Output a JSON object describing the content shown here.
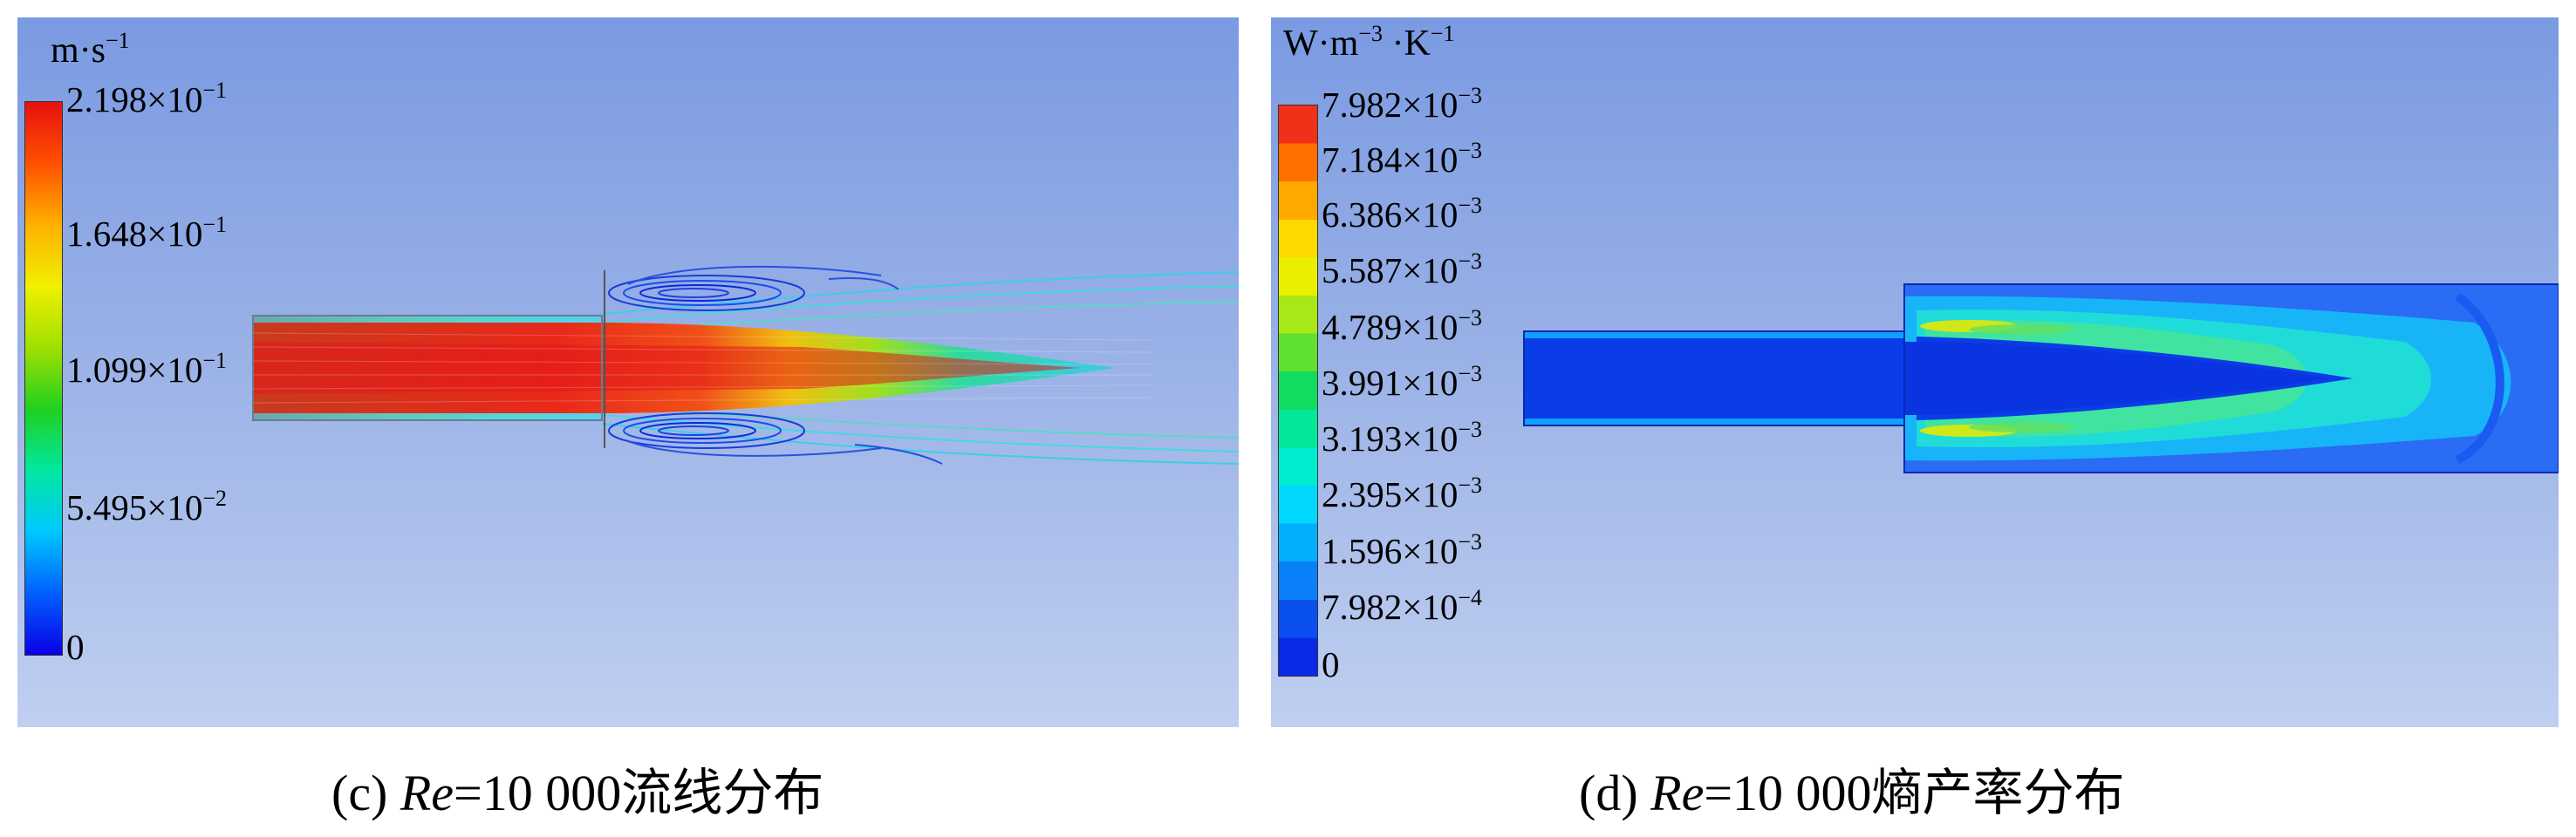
{
  "panel_c": {
    "unit": {
      "base": "m·s",
      "exp": "−1"
    },
    "colorbar_colors": [
      "#0a00e6",
      "#0060ff",
      "#00c8ff",
      "#00e8a0",
      "#20d020",
      "#a0e000",
      "#f0f000",
      "#ffb000",
      "#ff5000",
      "#e81010"
    ],
    "ticks": [
      {
        "mant": "2.198×10",
        "exp": "−1"
      },
      {
        "mant": "1.648×10",
        "exp": "−1"
      },
      {
        "mant": "1.099×10",
        "exp": "−1"
      },
      {
        "mant": "5.495×10",
        "exp": "−2"
      },
      {
        "mant": "0",
        "exp": ""
      }
    ]
  },
  "panel_d": {
    "unit": {
      "p1": "W·m",
      "e1": "−3",
      "p2": " ·K",
      "e2": "−1"
    },
    "colorbar_colors": [
      "#0a2ae8",
      "#0a50f0",
      "#0a80f8",
      "#00b0ff",
      "#00d8ff",
      "#00ecd0",
      "#00e898",
      "#10dc60",
      "#60e030",
      "#a8e818",
      "#e8f000",
      "#ffd800",
      "#ffa800",
      "#ff7000",
      "#f03018"
    ],
    "ticks": [
      {
        "mant": "7.982×10",
        "exp": "−3"
      },
      {
        "mant": "7.184×10",
        "exp": "−3"
      },
      {
        "mant": "6.386×10",
        "exp": "−3"
      },
      {
        "mant": "5.587×10",
        "exp": "−3"
      },
      {
        "mant": "4.789×10",
        "exp": "−3"
      },
      {
        "mant": "3.991×10",
        "exp": "−3"
      },
      {
        "mant": "3.193×10",
        "exp": "−3"
      },
      {
        "mant": "2.395×10",
        "exp": "−3"
      },
      {
        "mant": "1.596×10",
        "exp": "−3"
      },
      {
        "mant": "7.982×10",
        "exp": "−4"
      },
      {
        "mant": "0",
        "exp": ""
      }
    ]
  },
  "captions": {
    "c": {
      "label": "(c) ",
      "re": "Re",
      "rest": "=10 000流线分布"
    },
    "d": {
      "label": "(d) ",
      "re": "Re",
      "rest": "=10 000熵产率分布"
    }
  }
}
